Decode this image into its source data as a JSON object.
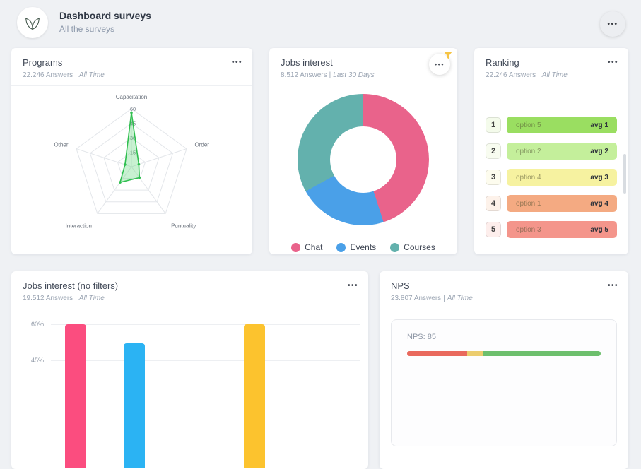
{
  "ui": {
    "pipe": "|",
    "menu_dots": "•••"
  },
  "header": {
    "title": "Dashboard surveys",
    "subtitle": "All the surveys"
  },
  "cards": {
    "programs": {
      "title": "Programs",
      "answers": "22.246 Answers",
      "period": "All Time"
    },
    "jobs_interest": {
      "title": "Jobs interest",
      "answers": "8.512 Answers",
      "period": "Last 30 Days"
    },
    "ranking": {
      "title": "Ranking",
      "answers": "22.246 Answers",
      "period": "All Time",
      "rows": [
        {
          "rank": "1",
          "label": "option 5",
          "avg": "avg 1",
          "bar_color": "#9ade61",
          "badge_color": "#f4fbeb"
        },
        {
          "rank": "2",
          "label": "option 2",
          "avg": "avg 2",
          "bar_color": "#c4ef9b",
          "badge_color": "#f8fcf0"
        },
        {
          "rank": "3",
          "label": "option 4",
          "avg": "avg 3",
          "bar_color": "#f6f2a0",
          "badge_color": "#fdfcee"
        },
        {
          "rank": "4",
          "label": "option 1",
          "avg": "avg 4",
          "bar_color": "#f4aa82",
          "badge_color": "#fdf2ea"
        },
        {
          "rank": "5",
          "label": "option 3",
          "avg": "avg 5",
          "bar_color": "#f4958b",
          "badge_color": "#fdeeec"
        }
      ]
    },
    "jobs_interest_nf": {
      "title": "Jobs interest (no filters)",
      "answers": "19.512 Answers",
      "period": "All Time"
    },
    "nps": {
      "title": "NPS",
      "answers": "23.807 Answers",
      "period": "All Time"
    }
  },
  "chart_data": [
    {
      "id": "programs-radar",
      "type": "radar",
      "title": "Programs",
      "categories": [
        "Capacitation",
        "Order",
        "Puntuality",
        "Interaction",
        "Other"
      ],
      "values": [
        56,
        8,
        14,
        20,
        7
      ],
      "max": 60,
      "ticks": [
        15,
        30,
        45,
        60
      ],
      "line_color": "#2fbf4f",
      "fill_color": "rgba(96,214,123,0.35)",
      "grid": true
    },
    {
      "id": "jobs-donut",
      "type": "pie",
      "title": "Jobs interest",
      "labels": [
        "Chat",
        "Events",
        "Courses"
      ],
      "values": [
        45,
        22,
        33
      ],
      "colors": [
        "#e9638b",
        "#4aa0e8",
        "#63b1ad"
      ],
      "donut_hole": 0.5,
      "legend_position": "bottom"
    },
    {
      "id": "ranking-list",
      "type": "table",
      "title": "Ranking",
      "columns": [
        "rank",
        "option",
        "avg"
      ],
      "rows": [
        [
          "1",
          "option 5",
          "avg 1"
        ],
        [
          "2",
          "option 2",
          "avg 2"
        ],
        [
          "3",
          "option 4",
          "avg 3"
        ],
        [
          "4",
          "option 1",
          "avg 4"
        ],
        [
          "5",
          "option 3",
          "avg 5"
        ]
      ]
    },
    {
      "id": "jobs-bars",
      "type": "bar",
      "title": "Jobs interest (no filters)",
      "values": [
        60,
        52,
        60
      ],
      "colors": [
        "#fb4d7f",
        "#2bb3f3",
        "#fcc32e"
      ],
      "bar_positions": [
        0.08,
        0.27,
        0.66
      ],
      "ylim": [
        0,
        65
      ],
      "yticks": [
        {
          "label": "60%",
          "value": 60
        },
        {
          "label": "45%",
          "value": 45
        }
      ],
      "grid": true
    },
    {
      "id": "nps-gauge",
      "type": "gauge",
      "title": "NPS",
      "label": "NPS: 85",
      "value": 85,
      "segments": [
        {
          "color": "#e9695d",
          "fraction": 0.31
        },
        {
          "color": "#eccd6e",
          "fraction": 0.08
        },
        {
          "color": "#6dbf6d",
          "fraction": 0.61
        }
      ]
    }
  ]
}
